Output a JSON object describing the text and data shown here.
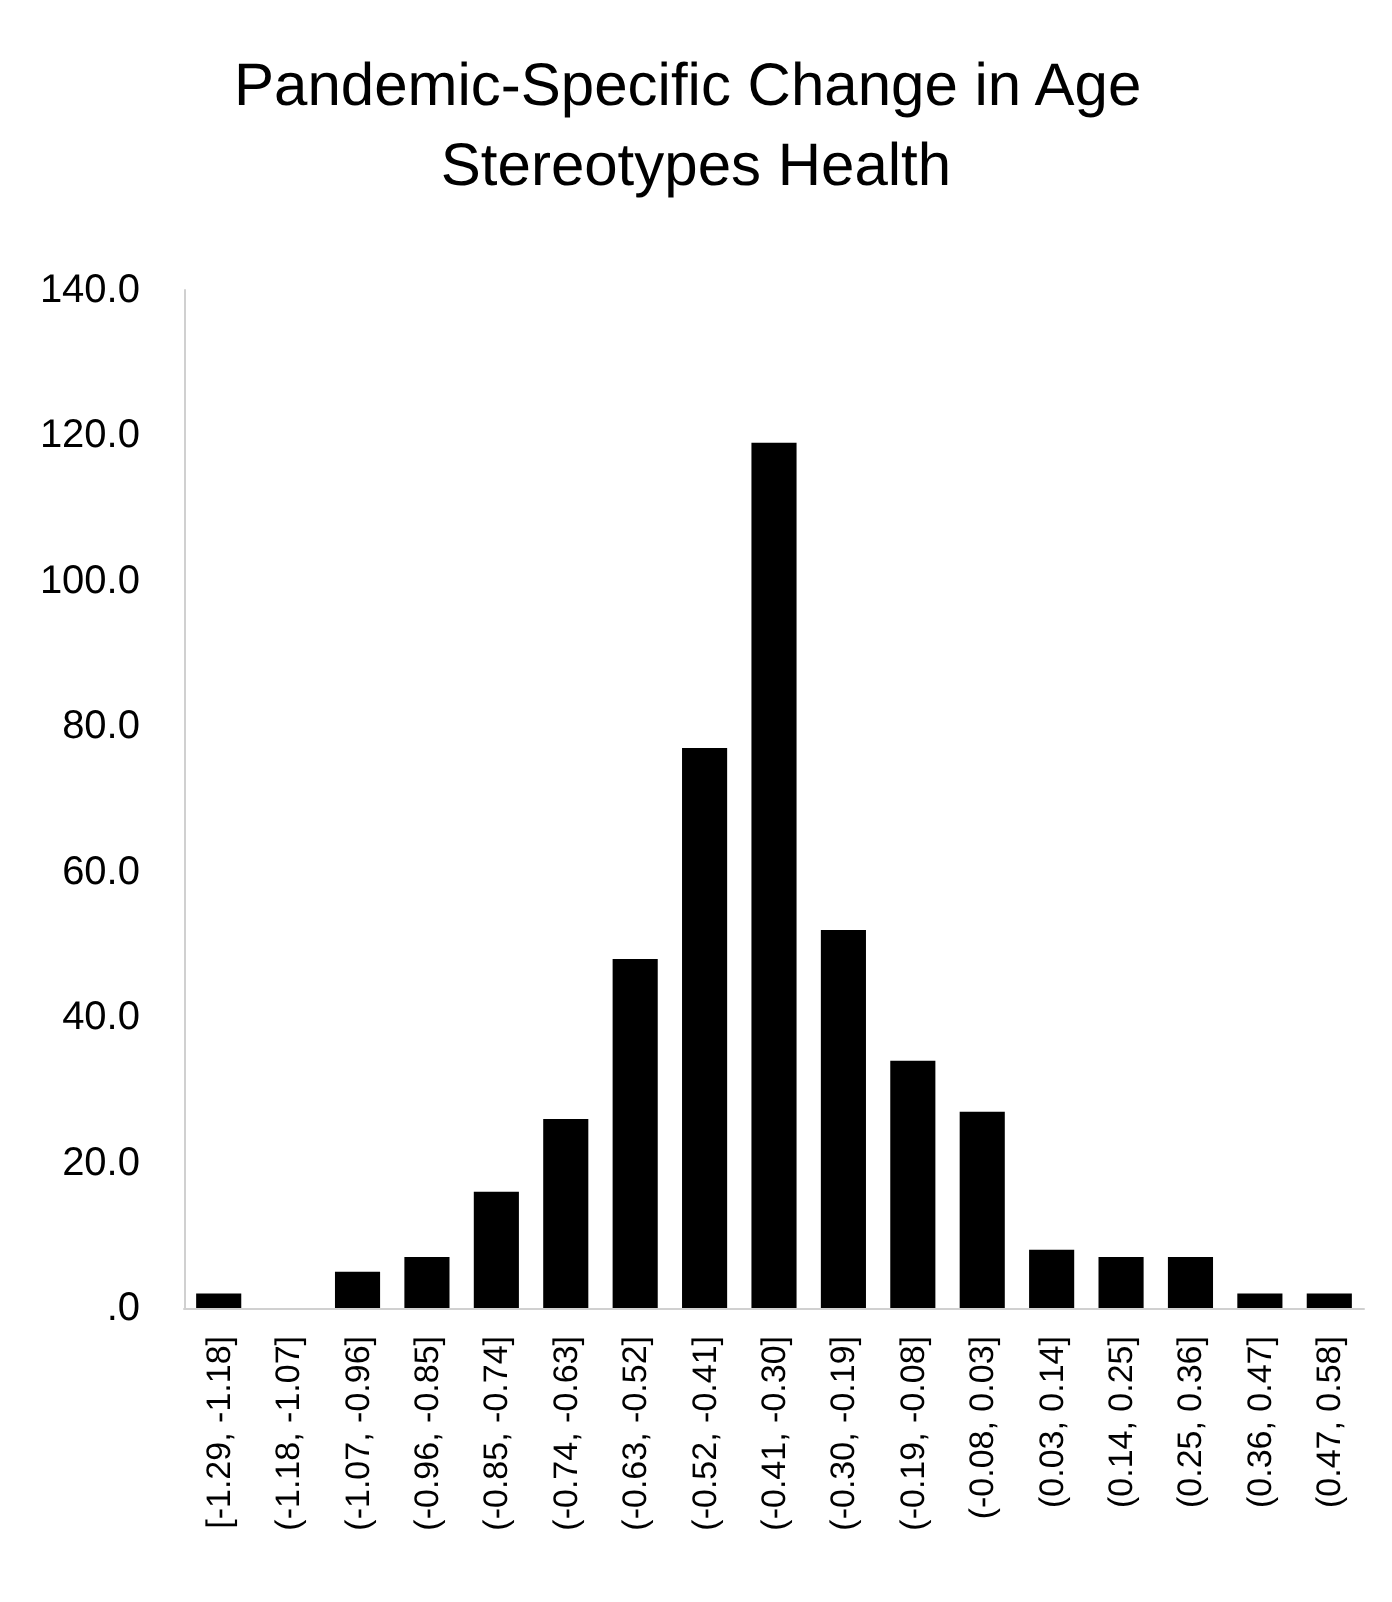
{
  "chart_data": {
    "type": "bar",
    "title": "Pandemic-Specific Change in Age Stereotypes Health",
    "categories": [
      "[-1.29, -1.18]",
      "(-1.18, -1.07]",
      "(-1.07, -0.96]",
      "(-0.96, -0.85]",
      "(-0.85, -0.74]",
      "(-0.74, -0.63]",
      "(-0.63, -0.52]",
      "(-0.52, -0.41]",
      "(-0.41, -0.30]",
      "(-0.30, -0.19]",
      "(-0.19, -0.08]",
      "(-0.08, 0.03]",
      "(0.03, 0.14]",
      "(0.14, 0.25]",
      "(0.25, 0.36]",
      "(0.36, 0.47]",
      "(0.47, 0.58]"
    ],
    "values": [
      2,
      0,
      5,
      7,
      16,
      26,
      48,
      77,
      119,
      52,
      34,
      27,
      8,
      7,
      7,
      2,
      2
    ],
    "color": "#000000",
    "ylim": [
      0,
      140
    ],
    "yticks": [
      {
        "value": 0,
        "label": ".0"
      },
      {
        "value": 20,
        "label": "20.0"
      },
      {
        "value": 40,
        "label": "40.0"
      },
      {
        "value": 60,
        "label": "60.0"
      },
      {
        "value": 80,
        "label": "80.0"
      },
      {
        "value": 100,
        "label": "100.0"
      },
      {
        "value": 120,
        "label": "120.0"
      },
      {
        "value": 140,
        "label": "140.0"
      }
    ],
    "grid": false
  }
}
